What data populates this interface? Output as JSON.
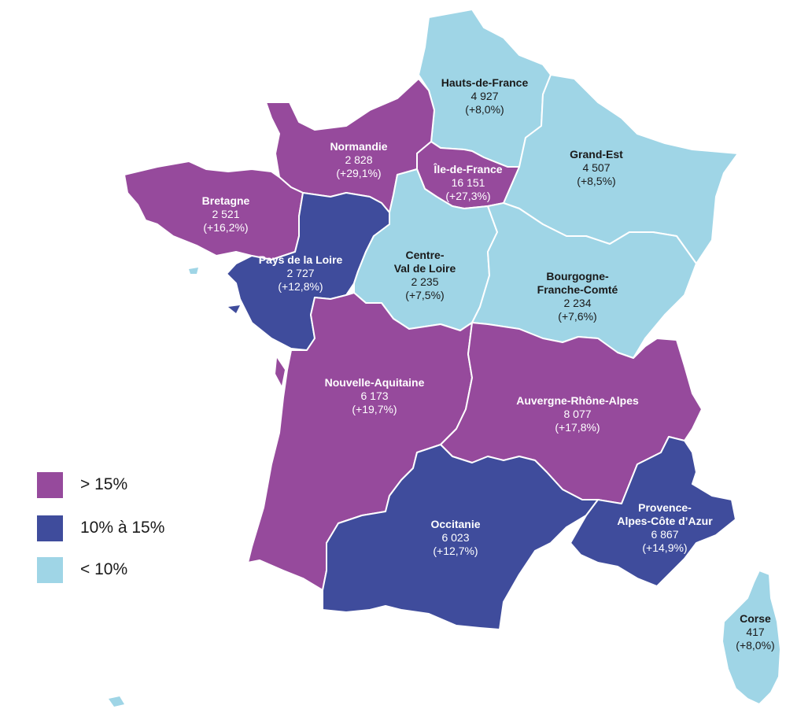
{
  "colors": {
    "gt15": "#964a9c",
    "10to15": "#3f4c9c",
    "lt10": "#9fd5e6"
  },
  "legend": [
    {
      "label": "> 15%",
      "class": "gt15"
    },
    {
      "label": "10% à 15%",
      "class": "10to15"
    },
    {
      "label": "< 10%",
      "class": "lt10"
    }
  ],
  "regions": {
    "hauts_de_france": {
      "name": "Hauts-de-France",
      "value": "4 927",
      "change": "(+8,0%)",
      "class": "lt10"
    },
    "grand_est": {
      "name": "Grand-Est",
      "value": "4 507",
      "change": "(+8,5%)",
      "class": "lt10"
    },
    "normandie": {
      "name": "Normandie",
      "value": "2 828",
      "change": "(+29,1%)",
      "class": "gt15"
    },
    "ile_de_france": {
      "name": "Île-de-France",
      "value": "16 151",
      "change": "(+27,3%)",
      "class": "gt15"
    },
    "bretagne": {
      "name": "Bretagne",
      "value": "2 521",
      "change": "(+16,2%)",
      "class": "gt15"
    },
    "pays_de_la_loire": {
      "name": "Pays de la Loire",
      "value": "2 727",
      "change": "(+12,8%)",
      "class": "10to15"
    },
    "centre_val_de_loire": {
      "name_line1": "Centre-",
      "name_line2": "Val de Loire",
      "value": "2 235",
      "change": "(+7,5%)",
      "class": "lt10"
    },
    "bourgogne_franche_comte": {
      "name_line1": "Bourgogne-",
      "name_line2": "Franche-Comté",
      "value": "2 234",
      "change": "(+7,6%)",
      "class": "lt10"
    },
    "nouvelle_aquitaine": {
      "name": "Nouvelle-Aquitaine",
      "value": "6 173",
      "change": "(+19,7%)",
      "class": "gt15"
    },
    "auvergne_rhone_alpes": {
      "name": "Auvergne-Rhône-Alpes",
      "value": "8 077",
      "change": "(+17,8%)",
      "class": "gt15"
    },
    "occitanie": {
      "name": "Occitanie",
      "value": "6 023",
      "change": "(+12,7%)",
      "class": "10to15"
    },
    "provence_alpes_cote_azur": {
      "name_line1": "Provence-",
      "name_line2": "Alpes-Côte d’Azur",
      "value": "6 867",
      "change": "(+14,9%)",
      "class": "10to15"
    },
    "corse": {
      "name": "Corse",
      "value": "417",
      "change": "(+8,0%)",
      "class": "lt10"
    }
  }
}
